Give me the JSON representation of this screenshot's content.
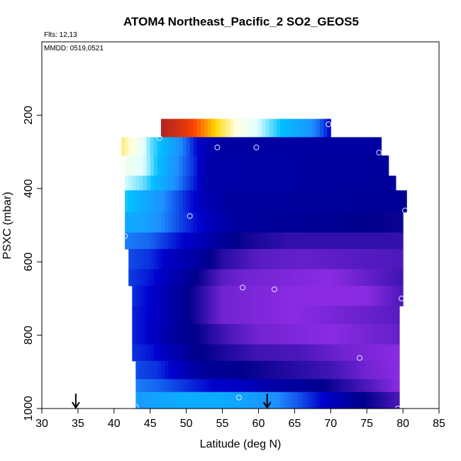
{
  "chart_data": {
    "type": "heatmap",
    "title": "ATOM4 Northeast_Pacific_2 SO2_GEOS5",
    "flights_label": "Flts: 12,13",
    "dates_label": "MMDD: 0519,0521",
    "xlabel": "Latitude (deg N)",
    "ylabel": "PSXC (mbar)",
    "xlim": [
      30,
      85
    ],
    "ylim": [
      1000,
      0
    ],
    "x_ticks": [
      30,
      35,
      40,
      45,
      50,
      55,
      60,
      65,
      70,
      75,
      80,
      85
    ],
    "y_ticks": [
      200,
      400,
      600,
      800,
      1000
    ],
    "grid": false,
    "colormap": [
      "#8a2be2",
      "#00008b",
      "#0000cd",
      "#1e90ff",
      "#00bfff",
      "#e0ffff",
      "#ffffe0",
      "#ffd700",
      "#ff4500",
      "#b22222"
    ],
    "rows": [
      {
        "p_top": 210,
        "p_bot": 260,
        "lat_start": 46.5,
        "lat_end": 70,
        "values": [
          [
            46.5,
            1.0
          ],
          [
            50,
            0.93
          ],
          [
            54,
            0.78
          ],
          [
            57,
            0.66
          ],
          [
            60,
            0.55
          ],
          [
            63,
            0.45
          ],
          [
            66,
            0.38
          ],
          [
            68.5,
            0.3
          ],
          [
            70,
            0.22
          ]
        ]
      },
      {
        "p_top": 260,
        "p_bot": 310,
        "lat_start": 41,
        "lat_end": 77,
        "values": [
          [
            41,
            0.72
          ],
          [
            43,
            0.64
          ],
          [
            45,
            0.5
          ],
          [
            47,
            0.42
          ],
          [
            50,
            0.3
          ],
          [
            52,
            0.2
          ],
          [
            55,
            0.15
          ],
          [
            77,
            0.15
          ]
        ]
      },
      {
        "p_top": 310,
        "p_bot": 365,
        "lat_start": 41.5,
        "lat_end": 78,
        "values": [
          [
            41.5,
            0.62
          ],
          [
            44,
            0.56
          ],
          [
            46,
            0.45
          ],
          [
            48,
            0.36
          ],
          [
            51,
            0.26
          ],
          [
            53,
            0.16
          ],
          [
            78,
            0.14
          ]
        ]
      },
      {
        "p_top": 365,
        "p_bot": 405,
        "lat_start": 41.5,
        "lat_end": 79,
        "values": [
          [
            41.5,
            0.55
          ],
          [
            44,
            0.5
          ],
          [
            46,
            0.42
          ],
          [
            48,
            0.35
          ],
          [
            51,
            0.25
          ],
          [
            53,
            0.16
          ],
          [
            79,
            0.14
          ]
        ]
      },
      {
        "p_top": 405,
        "p_bot": 465,
        "lat_start": 41.5,
        "lat_end": 80.5,
        "values": [
          [
            41.5,
            0.46
          ],
          [
            44,
            0.4
          ],
          [
            46.5,
            0.34
          ],
          [
            49,
            0.28
          ],
          [
            52,
            0.2
          ],
          [
            55,
            0.15
          ],
          [
            80.5,
            0.13
          ]
        ]
      },
      {
        "p_top": 465,
        "p_bot": 520,
        "lat_start": 41.5,
        "lat_end": 80,
        "values": [
          [
            41.5,
            0.4
          ],
          [
            44,
            0.38
          ],
          [
            47,
            0.32
          ],
          [
            50,
            0.26
          ],
          [
            53,
            0.2
          ],
          [
            56,
            0.15
          ],
          [
            72,
            0.12
          ],
          [
            80,
            0.1
          ]
        ]
      },
      {
        "p_top": 520,
        "p_bot": 565,
        "lat_start": 41.5,
        "lat_end": 80,
        "values": [
          [
            41.5,
            0.32
          ],
          [
            45,
            0.3
          ],
          [
            48,
            0.25
          ],
          [
            51,
            0.2
          ],
          [
            54,
            0.15
          ],
          [
            58,
            0.1
          ],
          [
            64,
            0.07
          ],
          [
            80,
            0.07
          ]
        ]
      },
      {
        "p_top": 565,
        "p_bot": 620,
        "lat_start": 42,
        "lat_end": 80,
        "values": [
          [
            42,
            0.28
          ],
          [
            45,
            0.26
          ],
          [
            48,
            0.2
          ],
          [
            52,
            0.14
          ],
          [
            55,
            0.08
          ],
          [
            60,
            0.04
          ],
          [
            66,
            0.03
          ],
          [
            80,
            0.05
          ]
        ]
      },
      {
        "p_top": 620,
        "p_bot": 665,
        "lat_start": 42,
        "lat_end": 80,
        "values": [
          [
            42,
            0.27
          ],
          [
            45,
            0.24
          ],
          [
            48,
            0.18
          ],
          [
            52,
            0.1
          ],
          [
            55,
            0.04
          ],
          [
            58,
            0.02
          ],
          [
            70,
            0.0
          ],
          [
            80,
            0.06
          ]
        ]
      },
      {
        "p_top": 665,
        "p_bot": 720,
        "lat_start": 42.5,
        "lat_end": 80,
        "values": [
          [
            42.5,
            0.26
          ],
          [
            45,
            0.22
          ],
          [
            48,
            0.16
          ],
          [
            52,
            0.08
          ],
          [
            55,
            0.02
          ],
          [
            65,
            0.0
          ],
          [
            75,
            0.0
          ],
          [
            80,
            0.05
          ]
        ]
      },
      {
        "p_top": 720,
        "p_bot": 770,
        "lat_start": 42.5,
        "lat_end": 79.5,
        "values": [
          [
            42.5,
            0.25
          ],
          [
            45,
            0.22
          ],
          [
            48,
            0.16
          ],
          [
            52,
            0.08
          ],
          [
            55,
            0.02
          ],
          [
            65,
            0.0
          ],
          [
            79.5,
            0.04
          ]
        ]
      },
      {
        "p_top": 770,
        "p_bot": 825,
        "lat_start": 42.5,
        "lat_end": 79.5,
        "values": [
          [
            42.5,
            0.25
          ],
          [
            45,
            0.22
          ],
          [
            48,
            0.15
          ],
          [
            52,
            0.1
          ],
          [
            56,
            0.05
          ],
          [
            60,
            0.02
          ],
          [
            70,
            0.0
          ],
          [
            79.5,
            0.03
          ]
        ]
      },
      {
        "p_top": 825,
        "p_bot": 870,
        "lat_start": 42.5,
        "lat_end": 79.5,
        "values": [
          [
            42.5,
            0.26
          ],
          [
            45,
            0.24
          ],
          [
            48,
            0.18
          ],
          [
            51,
            0.12
          ],
          [
            55,
            0.09
          ],
          [
            60,
            0.06
          ],
          [
            66,
            0.05
          ],
          [
            72,
            0.02
          ],
          [
            79.5,
            0.0
          ]
        ]
      },
      {
        "p_top": 870,
        "p_bot": 920,
        "lat_start": 43,
        "lat_end": 79.5,
        "values": [
          [
            43,
            0.28
          ],
          [
            46,
            0.26
          ],
          [
            49,
            0.2
          ],
          [
            52,
            0.14
          ],
          [
            56,
            0.12
          ],
          [
            60,
            0.1
          ],
          [
            65,
            0.08
          ],
          [
            70,
            0.06
          ],
          [
            75,
            0.02
          ],
          [
            79.5,
            0.0
          ]
        ]
      },
      {
        "p_top": 920,
        "p_bot": 955,
        "lat_start": 43,
        "lat_end": 79.5,
        "values": [
          [
            43,
            0.32
          ],
          [
            46,
            0.3
          ],
          [
            50,
            0.26
          ],
          [
            54,
            0.22
          ],
          [
            58,
            0.2
          ],
          [
            62,
            0.16
          ],
          [
            66,
            0.14
          ],
          [
            70,
            0.1
          ],
          [
            74,
            0.06
          ],
          [
            79.5,
            0.0
          ]
        ]
      },
      {
        "p_top": 955,
        "p_bot": 1000,
        "lat_start": 43,
        "lat_end": 79.5,
        "values": [
          [
            43,
            0.36
          ],
          [
            46,
            0.38
          ],
          [
            50,
            0.4
          ],
          [
            54,
            0.4
          ],
          [
            58,
            0.38
          ],
          [
            62,
            0.34
          ],
          [
            66,
            0.28
          ],
          [
            70,
            0.2
          ],
          [
            74,
            0.12
          ],
          [
            79.5,
            0.05
          ]
        ]
      }
    ],
    "sample_points": [
      {
        "lat": 69.7,
        "p": 225
      },
      {
        "lat": 46.3,
        "p": 262
      },
      {
        "lat": 54.3,
        "p": 288
      },
      {
        "lat": 59.7,
        "p": 288
      },
      {
        "lat": 76.7,
        "p": 302
      },
      {
        "lat": 80.3,
        "p": 460
      },
      {
        "lat": 50.5,
        "p": 475
      },
      {
        "lat": 41.5,
        "p": 530
      },
      {
        "lat": 57.8,
        "p": 670
      },
      {
        "lat": 62.2,
        "p": 675
      },
      {
        "lat": 79.8,
        "p": 700
      },
      {
        "lat": 74.0,
        "p": 862
      },
      {
        "lat": 57.3,
        "p": 970
      },
      {
        "lat": 43.0,
        "p": 995
      },
      {
        "lat": 79.3,
        "p": 1000
      }
    ],
    "arrows": [
      {
        "lat": 34.7
      },
      {
        "lat": 61.2
      }
    ]
  }
}
